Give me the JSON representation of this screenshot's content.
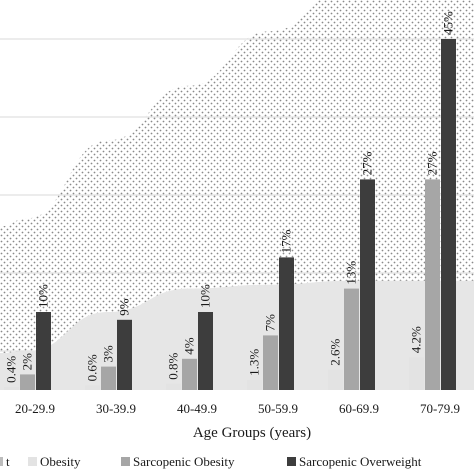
{
  "chart_data": {
    "type": "bar",
    "xlabel": "Age Groups (years)",
    "ylabel": "",
    "title": "",
    "categories": [
      "20-29.9",
      "30-39.9",
      "40-49.9",
      "50-59.9",
      "60-69.9",
      "70-79.9"
    ],
    "area_series": [
      {
        "name": "",
        "pattern": "dots",
        "values": [
          22,
          32,
          39,
          46,
          52,
          58
        ]
      },
      {
        "name": "Obesity",
        "pattern": "solid",
        "values": [
          5,
          10,
          13,
          13.5,
          14,
          14
        ]
      }
    ],
    "bar_series": [
      {
        "name": "Sarcopenic Obesity",
        "color": "#a6a6a6",
        "values": [
          2,
          3,
          4,
          7,
          13,
          27
        ],
        "labels": [
          "2%",
          "3%",
          "4%",
          "7%",
          "13%",
          "27%"
        ]
      },
      {
        "name": "Sarcopenic Overweight",
        "color": "#3d3d3d",
        "values": [
          10,
          9,
          10,
          17,
          27,
          45
        ],
        "labels": [
          "10%",
          "9%",
          "10%",
          "17%",
          "27%",
          "45%"
        ]
      }
    ],
    "small_bar_series": {
      "color": "#e3e3e3",
      "values": [
        0.4,
        0.6,
        0.8,
        1.3,
        2.6,
        4.2
      ],
      "labels": [
        "0.4%",
        "0.6%",
        "0.8%",
        "1.3%",
        "2.6%",
        "4.2%"
      ]
    },
    "legend": {
      "placement": "bottom",
      "entries": [
        {
          "label": "t",
          "color": "#bdbdbd"
        },
        {
          "label": "Obesity",
          "color": "#e3e3e3"
        },
        {
          "label": "Sarcopenic Obesity",
          "color": "#a6a6a6"
        },
        {
          "label": "Sarcopenic Overweight",
          "color": "#3d3d3d"
        }
      ]
    },
    "ylim": [
      0,
      50
    ],
    "gridlines": [
      5,
      15,
      25,
      35,
      45
    ],
    "colors": {
      "dots": "#8a8a8a",
      "obesity_area": "#e6e6e6",
      "grid": "#d9d9d9"
    }
  }
}
